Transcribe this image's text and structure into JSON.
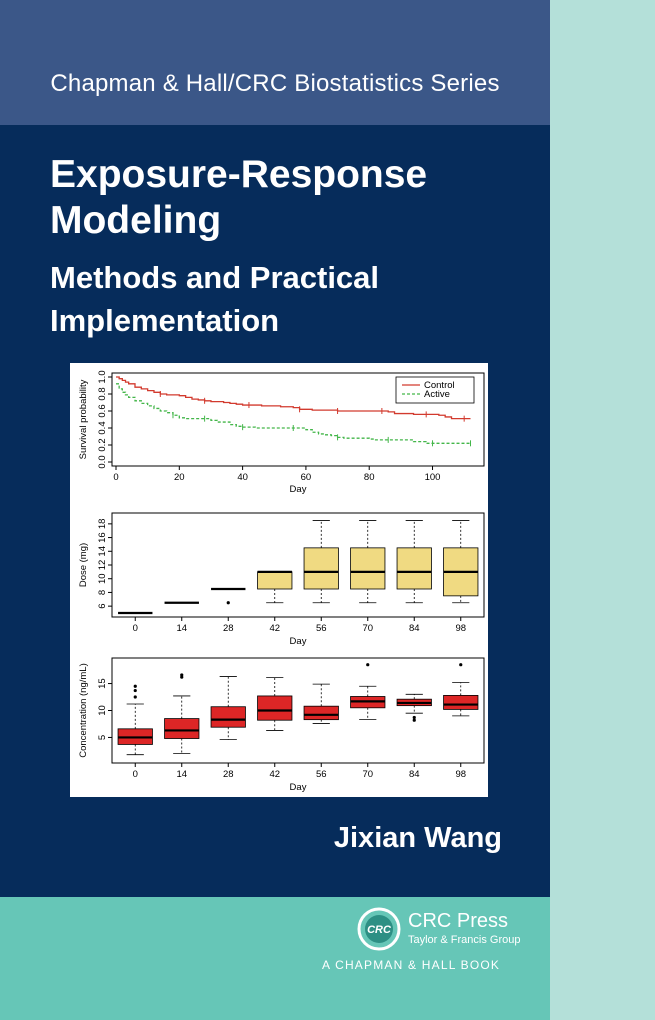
{
  "cover": {
    "series": "Chapman & Hall/CRC Biostatistics Series",
    "title": "Exposure-Response Modeling",
    "subtitle": "Methods and Practical Implementation",
    "author": "Jixian Wang",
    "publisher": {
      "name": "CRC Press",
      "group": "Taylor & Francis Group",
      "imprint": "A CHAPMAN & HALL BOOK",
      "logo_text": "CRC"
    },
    "colors": {
      "series_band": "#3b5788",
      "main_band": "#062c5b",
      "footer_band": "#66c6b7",
      "side_strip": "#b4e0d9"
    }
  },
  "chart_data": [
    {
      "type": "line",
      "xlabel": "Day",
      "ylabel": "Survival probability",
      "xlim": [
        0,
        115
      ],
      "ylim": [
        0,
        1.0
      ],
      "xticks": [
        0,
        20,
        40,
        60,
        80,
        100
      ],
      "yticks": [
        0.0,
        0.2,
        0.4,
        0.6,
        0.8,
        1.0
      ],
      "legend_position": "top-right",
      "series": [
        {
          "name": "Control",
          "color": "#d23a2e",
          "dash": false,
          "x": [
            0,
            1,
            2,
            3,
            4,
            6,
            8,
            10,
            12,
            14,
            16,
            20,
            22,
            24,
            26,
            28,
            30,
            34,
            36,
            38,
            40,
            46,
            52,
            56,
            58,
            62,
            66,
            70,
            74,
            78,
            82,
            86,
            88,
            94,
            96,
            100,
            102,
            104,
            106,
            112
          ],
          "y": [
            1.0,
            0.98,
            0.96,
            0.94,
            0.92,
            0.88,
            0.86,
            0.84,
            0.82,
            0.8,
            0.79,
            0.78,
            0.76,
            0.74,
            0.73,
            0.72,
            0.71,
            0.7,
            0.69,
            0.68,
            0.67,
            0.66,
            0.65,
            0.64,
            0.62,
            0.61,
            0.61,
            0.6,
            0.6,
            0.6,
            0.6,
            0.59,
            0.57,
            0.56,
            0.56,
            0.56,
            0.55,
            0.53,
            0.51,
            0.51
          ]
        },
        {
          "name": "Active",
          "color": "#43b649",
          "dash": true,
          "x": [
            0,
            1,
            2,
            3,
            4,
            6,
            8,
            10,
            12,
            14,
            16,
            18,
            20,
            22,
            26,
            30,
            32,
            36,
            38,
            40,
            44,
            48,
            56,
            60,
            62,
            64,
            66,
            68,
            70,
            72,
            76,
            80,
            82,
            86,
            90,
            94,
            98,
            100,
            104,
            112
          ],
          "y": [
            0.92,
            0.86,
            0.82,
            0.79,
            0.76,
            0.72,
            0.69,
            0.66,
            0.63,
            0.6,
            0.58,
            0.55,
            0.52,
            0.51,
            0.51,
            0.49,
            0.47,
            0.44,
            0.42,
            0.41,
            0.4,
            0.4,
            0.4,
            0.38,
            0.35,
            0.33,
            0.32,
            0.31,
            0.29,
            0.28,
            0.28,
            0.27,
            0.26,
            0.26,
            0.26,
            0.24,
            0.22,
            0.22,
            0.22,
            0.22
          ]
        }
      ],
      "censor_marks": {
        "Control": [
          [
            14,
            0.8
          ],
          [
            28,
            0.72
          ],
          [
            42,
            0.67
          ],
          [
            58,
            0.62
          ],
          [
            70,
            0.6
          ],
          [
            84,
            0.6
          ],
          [
            98,
            0.56
          ],
          [
            110,
            0.51
          ]
        ],
        "Active": [
          [
            18,
            0.55
          ],
          [
            28,
            0.51
          ],
          [
            40,
            0.41
          ],
          [
            56,
            0.4
          ],
          [
            70,
            0.29
          ],
          [
            86,
            0.26
          ],
          [
            100,
            0.22
          ],
          [
            112,
            0.22
          ]
        ]
      }
    },
    {
      "type": "box",
      "xlabel": "Day",
      "ylabel": "Dose (mg)",
      "categories": [
        "0",
        "14",
        "28",
        "42",
        "56",
        "70",
        "84",
        "98"
      ],
      "ylim": [
        5,
        19
      ],
      "yticks": [
        6,
        8,
        10,
        12,
        14,
        16,
        18
      ],
      "fill": "#f0da82",
      "boxes": [
        {
          "min": 5,
          "q1": 5,
          "median": 5,
          "q3": 5,
          "max": 5,
          "outliers": []
        },
        {
          "min": 6.5,
          "q1": 6.5,
          "median": 6.5,
          "q3": 6.5,
          "max": 6.5,
          "outliers": []
        },
        {
          "min": 8.5,
          "q1": 8.5,
          "median": 8.5,
          "q3": 8.5,
          "max": 8.5,
          "outliers": [
            6.5
          ]
        },
        {
          "min": 6.5,
          "q1": 8.5,
          "median": 11,
          "q3": 11,
          "max": 11,
          "outliers": []
        },
        {
          "min": 6.5,
          "q1": 8.5,
          "median": 11,
          "q3": 14.5,
          "max": 18.5,
          "outliers": []
        },
        {
          "min": 6.5,
          "q1": 8.5,
          "median": 11,
          "q3": 14.5,
          "max": 18.5,
          "outliers": []
        },
        {
          "min": 6.5,
          "q1": 8.5,
          "median": 11,
          "q3": 14.5,
          "max": 18.5,
          "outliers": []
        },
        {
          "min": 6.5,
          "q1": 7.5,
          "median": 11,
          "q3": 14.5,
          "max": 18.5,
          "outliers": []
        }
      ]
    },
    {
      "type": "box",
      "xlabel": "Day",
      "ylabel": "Concentration (ng/mL)",
      "categories": [
        "0",
        "14",
        "28",
        "42",
        "56",
        "70",
        "84",
        "98"
      ],
      "ylim": [
        1,
        19
      ],
      "yticks": [
        5,
        10,
        15
      ],
      "fill": "#dd2626",
      "boxes": [
        {
          "min": 1.8,
          "q1": 3.7,
          "median": 5.0,
          "q3": 6.6,
          "max": 11.2,
          "outliers": [
            12.5,
            13.7,
            14.5
          ]
        },
        {
          "min": 2.0,
          "q1": 4.8,
          "median": 6.3,
          "q3": 8.5,
          "max": 12.7,
          "outliers": [
            16.2,
            16.6
          ]
        },
        {
          "min": 4.6,
          "q1": 6.9,
          "median": 8.3,
          "q3": 10.7,
          "max": 16.3,
          "outliers": []
        },
        {
          "min": 6.3,
          "q1": 8.2,
          "median": 10.0,
          "q3": 12.7,
          "max": 16.1,
          "outliers": []
        },
        {
          "min": 7.6,
          "q1": 8.3,
          "median": 9.2,
          "q3": 10.8,
          "max": 14.9,
          "outliers": []
        },
        {
          "min": 8.3,
          "q1": 10.5,
          "median": 11.7,
          "q3": 12.6,
          "max": 14.5,
          "outliers": [
            18.5
          ]
        },
        {
          "min": 9.5,
          "q1": 10.9,
          "median": 11.4,
          "q3": 12.1,
          "max": 13.0,
          "outliers": [
            8.7,
            8.2
          ]
        },
        {
          "min": 9.0,
          "q1": 10.2,
          "median": 11.1,
          "q3": 12.8,
          "max": 15.2,
          "outliers": [
            18.5
          ]
        }
      ]
    }
  ]
}
